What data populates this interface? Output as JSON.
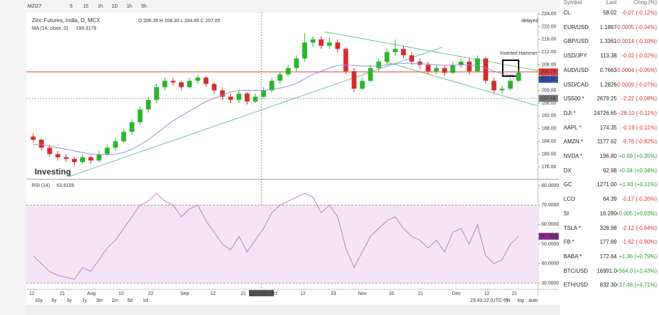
{
  "toolbar": {
    "symbol": "MZI27",
    "intervals": [
      "5",
      "15",
      "1h",
      "1D",
      "1h",
      "5h"
    ]
  },
  "chart_data": {
    "type": "candlestick",
    "title": "Zinc Futures, India, D, MCX",
    "ohlc": "O 206.35 H 208.30 L 204.85 C 207.05",
    "delayed": "delayed",
    "annotation": "Inverted Hammer",
    "ylim": [
      176,
      224
    ],
    "yticks": [
      {
        "value": 176,
        "label": "176.00"
      },
      {
        "value": 180,
        "label": "180.00"
      },
      {
        "value": 184,
        "label": "184.00"
      },
      {
        "value": 188,
        "label": "188.00"
      },
      {
        "value": 192,
        "label": "192.00"
      },
      {
        "value": 196,
        "label": "196.00"
      },
      {
        "value": 200,
        "label": "200.00"
      },
      {
        "value": 204,
        "label": "204.00"
      },
      {
        "value": 208,
        "label": "208.00"
      },
      {
        "value": 212,
        "label": "212.00"
      },
      {
        "value": 216,
        "label": "216.00"
      },
      {
        "value": 220,
        "label": "220.00"
      },
      {
        "value": 224,
        "label": "224.00"
      }
    ],
    "price_labels": [
      {
        "value": 205.78,
        "label": "205.78",
        "color": "#e53935"
      },
      {
        "value": 203.46,
        "label": "203.46",
        "color": "#2f4fa8"
      },
      {
        "value": 197.48,
        "label": "197.48",
        "color": "#777777"
      }
    ],
    "up_color": "#2bb52b",
    "down_color": "#d32f2f",
    "candles": [
      [
        185.5,
        186.5,
        183.5,
        184.5
      ],
      [
        184.5,
        185,
        181,
        182
      ],
      [
        182,
        183,
        179,
        180
      ],
      [
        180,
        181,
        178,
        179
      ],
      [
        179,
        180,
        177.5,
        178.5
      ],
      [
        178.5,
        179,
        176.5,
        177.5
      ],
      [
        177.5,
        180,
        177,
        179
      ],
      [
        179,
        179.5,
        177,
        178
      ],
      [
        178,
        181,
        177.5,
        180
      ],
      [
        180,
        183,
        179.5,
        182
      ],
      [
        182,
        185,
        181,
        184
      ],
      [
        184,
        188,
        183.5,
        187
      ],
      [
        187,
        191,
        186,
        190
      ],
      [
        190,
        195,
        189,
        194
      ],
      [
        194,
        198,
        193,
        197
      ],
      [
        197,
        202,
        196,
        201
      ],
      [
        201,
        204,
        200,
        203
      ],
      [
        203,
        204,
        201.5,
        202.5
      ],
      [
        202.5,
        203,
        200,
        201
      ],
      [
        201,
        204,
        200.5,
        203
      ],
      [
        203,
        205,
        202,
        204
      ],
      [
        204,
        204.5,
        201,
        202
      ],
      [
        202,
        202.5,
        199,
        200
      ],
      [
        200,
        201,
        197,
        198
      ],
      [
        198,
        199,
        196,
        197
      ],
      [
        197,
        200,
        196,
        199
      ],
      [
        199,
        199.5,
        195.5,
        196.5
      ],
      [
        196.5,
        199,
        196,
        198
      ],
      [
        198,
        201,
        197.5,
        200
      ],
      [
        200,
        204,
        199.5,
        203
      ],
      [
        203,
        206,
        202,
        205
      ],
      [
        205,
        208,
        204.5,
        207
      ],
      [
        207,
        211,
        206,
        210
      ],
      [
        210,
        218,
        209,
        215
      ],
      [
        215,
        217,
        213.5,
        216
      ],
      [
        216,
        217,
        213,
        214
      ],
      [
        214,
        216.5,
        213,
        215
      ],
      [
        215,
        216,
        212,
        213
      ],
      [
        213,
        213.5,
        205,
        206
      ],
      [
        206,
        207,
        199.5,
        200.5
      ],
      [
        200.5,
        204,
        200,
        203
      ],
      [
        203,
        208,
        202.5,
        207
      ],
      [
        207,
        210,
        206,
        209
      ],
      [
        209,
        213,
        208,
        212
      ],
      [
        212,
        216,
        211,
        213
      ],
      [
        213,
        214,
        210,
        211
      ],
      [
        211,
        212,
        208,
        209
      ],
      [
        209,
        210,
        207,
        208
      ],
      [
        208,
        209,
        205,
        206
      ],
      [
        206,
        208,
        205,
        207
      ],
      [
        207,
        208,
        204.5,
        205.5
      ],
      [
        205.5,
        209,
        205,
        208
      ],
      [
        208,
        210,
        207,
        209
      ],
      [
        209,
        210,
        205,
        206
      ],
      [
        206,
        211,
        205.5,
        210
      ],
      [
        210,
        210.5,
        202,
        203
      ],
      [
        203,
        204,
        199,
        200
      ],
      [
        200,
        201.5,
        199,
        200.5
      ],
      [
        200.5,
        204,
        200,
        203
      ],
      [
        203,
        206.5,
        202.5,
        205.5
      ]
    ],
    "ma": {
      "name": "MA (14, close, 0)",
      "value_label": "199.3179",
      "color": "#9c88d8",
      "values": [
        183,
        183,
        182.5,
        182,
        181.5,
        181,
        180.5,
        180,
        179.8,
        179.8,
        180,
        180.5,
        181.5,
        183,
        184.5,
        186.5,
        188.5,
        190.5,
        192,
        193.5,
        195,
        196.5,
        197.5,
        198.5,
        199.5,
        200,
        200,
        200,
        200,
        200.2,
        200.7,
        201.3,
        202.2,
        203.6,
        205,
        206,
        207,
        207.8,
        208,
        207.8,
        207.6,
        207.6,
        207.7,
        208,
        208.3,
        208.5,
        208.5,
        208.4,
        208.2,
        208,
        207.9,
        207.9,
        208,
        207.9,
        207.8,
        207,
        206,
        205.2,
        204.8,
        204.6
      ]
    },
    "rsi": {
      "name": "RSI (14)",
      "value_label": "63.6105",
      "last_label": "58.7939",
      "color": "#c27ac2",
      "ylim": [
        30,
        80
      ],
      "yticks": [
        {
          "value": 30,
          "label": "30.0000"
        },
        {
          "value": 40,
          "label": "40.0000"
        },
        {
          "value": 50,
          "label": "50.0000"
        },
        {
          "value": 60,
          "label": "60.0000"
        },
        {
          "value": 70,
          "label": "70.0000"
        },
        {
          "value": 80,
          "label": "80.0000"
        }
      ],
      "band": [
        30,
        70
      ],
      "values": [
        44,
        40,
        36,
        34,
        33,
        32,
        38,
        36,
        42,
        48,
        52,
        58,
        64,
        70,
        72,
        76,
        72,
        70,
        64,
        68,
        70,
        62,
        56,
        50,
        47,
        54,
        46,
        52,
        58,
        66,
        70,
        72,
        74,
        76,
        74,
        66,
        70,
        64,
        48,
        38,
        46,
        54,
        58,
        62,
        64,
        58,
        54,
        52,
        48,
        52,
        46,
        56,
        58,
        50,
        60,
        44,
        40,
        42,
        50,
        54
      ]
    },
    "xlabels": [
      "12",
      "21",
      "Aug",
      "10",
      "22",
      "Sep",
      "12",
      "21",
      "2017-09-27",
      "ct",
      "12",
      "23",
      "Nov",
      "16",
      "21",
      "Dec",
      "12",
      "21"
    ]
  },
  "footer": {
    "ranges": [
      "10y",
      "5y",
      "3y",
      "1y",
      "3m",
      "1m",
      "5d",
      "1d"
    ],
    "time": "23:43:22 (UTC-5)",
    "options": [
      "%",
      "log",
      "auto"
    ]
  },
  "watchlist": {
    "headers": [
      "Symbol",
      "Last",
      "Chng (%)"
    ],
    "rows": [
      [
        "CL",
        "58.02",
        "-0.07 (-0.12%)"
      ],
      [
        "EUR/USD",
        "1.1867",
        "-0.0005 (-0.04%)"
      ],
      [
        "GBP/USD",
        "1.3361",
        "-0.0014 (-0.10%)"
      ],
      [
        "USD/JPY",
        "113.38",
        "-0.02 (-0.02%)"
      ],
      [
        "AUD/USD",
        "0.7663",
        "-0.0004 (-0.05%)"
      ],
      [
        "USD/CAD",
        "1.2826",
        "-0.0009 (-0.07%)"
      ],
      [
        "US500 *",
        "2679.25",
        "-2.22 (-0.08%)"
      ],
      [
        "DJI *",
        "24726.65",
        "-28.10 (-0.11%)"
      ],
      [
        "AAPL *",
        "174.35",
        "-0.19 (-0.11%)"
      ],
      [
        "AMZN *",
        "1177.62",
        "-9.76 (-0.82%)"
      ],
      [
        "NVDA *",
        "196.80",
        "+0.69 (+0.35%)"
      ],
      [
        "DX",
        "92.98",
        "+0.04 (+0.04%)"
      ],
      [
        "GC",
        "1271.00",
        "+1.40 (+0.11%)"
      ],
      [
        "LCO",
        "64.39",
        "-0.17 (-0.26%)"
      ],
      [
        "SI",
        "16.280",
        "+0.005 (+0.03%)"
      ],
      [
        "TSLA *",
        "328.98",
        "-2.12 (-0.64%)"
      ],
      [
        "FB *",
        "177.89",
        "-1.62 (-0.90%)"
      ],
      [
        "BABA *",
        "172.64",
        "+1.36 (+0.79%)"
      ],
      [
        "BTC/USD",
        "16991.0",
        "+564.0 (+3.43%)"
      ],
      [
        "ETH/USD",
        "832.30",
        "+37.46 (+4.71%)"
      ]
    ]
  }
}
